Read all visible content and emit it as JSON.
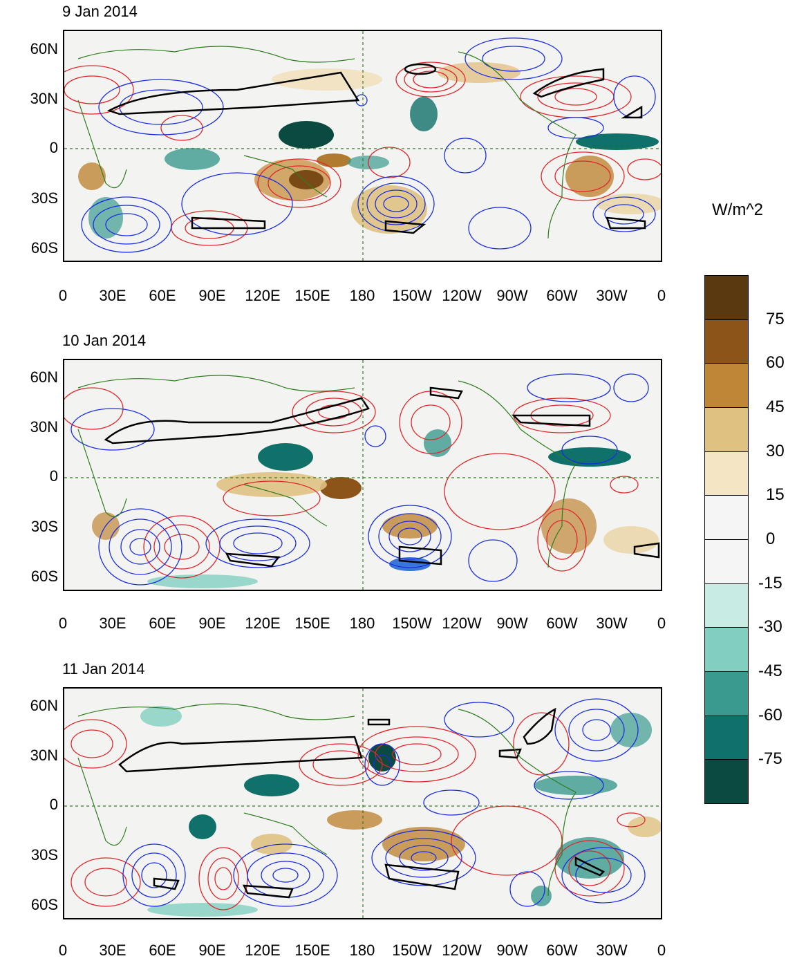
{
  "panels": [
    {
      "title": "9 Jan 2014"
    },
    {
      "title": "10 Jan 2014"
    },
    {
      "title": "11 Jan 2014"
    }
  ],
  "y_ticks": [
    "60N",
    "30N",
    "0",
    "30S",
    "60S"
  ],
  "x_ticks": [
    "0",
    "30E",
    "60E",
    "90E",
    "120E",
    "150E",
    "180",
    "150W",
    "120W",
    "90W",
    "60W",
    "30W",
    "0"
  ],
  "colorbar": {
    "unit": "W/m^2",
    "labels": [
      "75",
      "60",
      "45",
      "30",
      "15",
      "0",
      "-15",
      "-30",
      "-45",
      "-60",
      "-75"
    ],
    "colors": [
      "#5a3810",
      "#8c5418",
      "#bf8636",
      "#dfc282",
      "#f4e5c4",
      "#f5f5f5",
      "#f5f5f5",
      "#c8ebe3",
      "#82cfc2",
      "#3b9a90",
      "#10706a",
      "#0a4a40"
    ]
  },
  "legend_colors": {
    "positive_contour": "#e0262a",
    "negative_contour": "#1a2ee0",
    "jet_contour": "#000000",
    "coastline": "#2e7d1e"
  }
}
